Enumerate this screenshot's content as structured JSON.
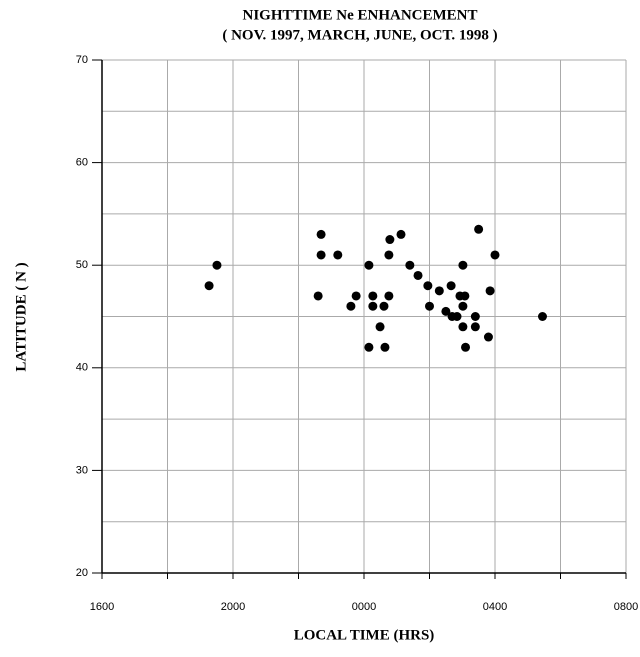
{
  "chart_data": {
    "type": "scatter",
    "title": "NIGHTTIME Ne ENHANCEMENT",
    "subtitle": "( NOV. 1997, MARCH, JUNE, OCT. 1998 )",
    "x_label": "LOCAL TIME (HRS)",
    "y_label": "LATITUDE ( N )",
    "xlim": [
      0,
      16
    ],
    "xticks": [
      {
        "value": 0,
        "label": "1600"
      },
      {
        "value": 4,
        "label": "2000"
      },
      {
        "value": 8,
        "label": "0000"
      },
      {
        "value": 12,
        "label": "0400"
      },
      {
        "value": 16,
        "label": "0800"
      }
    ],
    "ylim": [
      20,
      70
    ],
    "yticks": [
      20,
      30,
      40,
      50,
      60,
      70
    ],
    "grid": true,
    "color": "#000000",
    "x": [
      3.27,
      3.51,
      6.6,
      6.69,
      6.69,
      7.2,
      7.6,
      7.76,
      8.15,
      8.15,
      8.27,
      8.27,
      8.49,
      8.61,
      8.64,
      8.76,
      8.76,
      8.79,
      9.13,
      9.4,
      9.65,
      9.95,
      10.0,
      10.3,
      10.5,
      10.66,
      10.69,
      10.84,
      10.93,
      11.02,
      11.02,
      11.08,
      11.02,
      11.1,
      11.4,
      11.4,
      11.5,
      11.8,
      11.85,
      12.0,
      13.45
    ],
    "y": [
      48,
      50,
      47,
      53,
      51,
      51,
      46,
      47,
      42,
      50,
      47,
      46,
      44,
      46,
      42,
      47,
      51,
      52.5,
      53,
      50,
      49,
      48,
      46,
      47.5,
      45.5,
      48,
      45,
      45,
      47,
      50,
      46,
      47,
      44,
      42,
      45,
      44,
      53.5,
      43,
      47.5,
      51,
      45
    ]
  }
}
